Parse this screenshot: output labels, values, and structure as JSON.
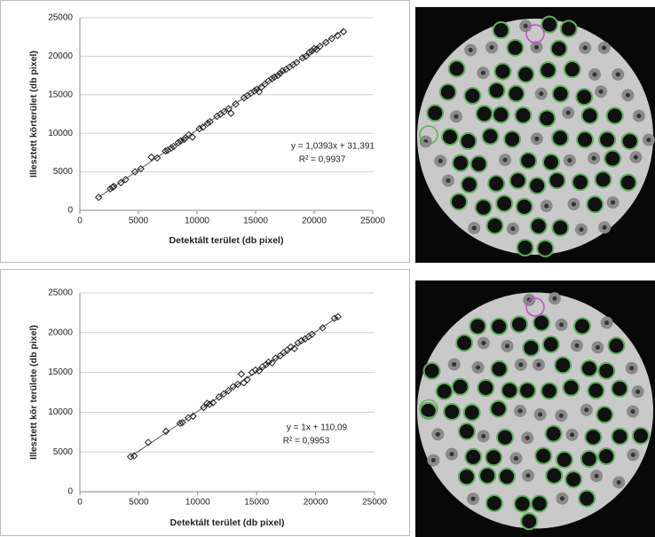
{
  "chart_data": [
    {
      "type": "scatter",
      "x_label": "Detektált terület (db pixel)",
      "y_label": "Illesztett körterület  (db pixel)",
      "annotations": [
        "y = 1,0393x + 31,391",
        "R² = 0,9937"
      ],
      "x": [
        1600,
        2600,
        2800,
        2900,
        3500,
        3900,
        4700,
        5200,
        6100,
        6600,
        7300,
        7500,
        7800,
        8000,
        8400,
        8600,
        8900,
        9000,
        9300,
        9600,
        10200,
        10500,
        10900,
        11100,
        11700,
        12000,
        12300,
        12700,
        12900,
        13300,
        14000,
        14300,
        14600,
        14900,
        15100,
        15300,
        15500,
        15800,
        16100,
        16400,
        16600,
        16900,
        17100,
        17300,
        17600,
        17900,
        18200,
        18500,
        19000,
        19300,
        19600,
        19800,
        20000,
        20200,
        20500,
        21000,
        21500,
        22000,
        22500
      ],
      "values": [
        1700,
        2800,
        3000,
        3100,
        3600,
        4000,
        5000,
        5400,
        6900,
        6800,
        7700,
        7800,
        8100,
        8300,
        8800,
        9000,
        9200,
        9400,
        9800,
        9500,
        10600,
        10800,
        11300,
        11500,
        12200,
        12500,
        12800,
        13200,
        12600,
        13800,
        14600,
        14900,
        15200,
        15500,
        15700,
        15400,
        16000,
        16400,
        16800,
        17100,
        17300,
        17500,
        17800,
        18100,
        18300,
        18600,
        18900,
        19200,
        19800,
        20000,
        20500,
        20700,
        21000,
        20900,
        21300,
        21800,
        22300,
        22700,
        23200
      ],
      "trendline": {
        "x": [
          1600,
          22500
        ],
        "y": [
          1694,
          23416
        ]
      },
      "color": "#222222",
      "xlim": [
        0,
        25000
      ],
      "xticks": [
        0,
        5000,
        10000,
        15000,
        20000,
        25000
      ],
      "ylim": [
        0,
        25000
      ],
      "yticks": [
        0,
        5000,
        10000,
        15000,
        20000,
        25000
      ],
      "grid": true
    },
    {
      "type": "scatter",
      "x_label": "Detektált terület  (db pixel)",
      "y_label": "Illesztett kör területe  (db pixel)",
      "annotations": [
        "y = 1x + 110,09",
        "R² = 0,9953"
      ],
      "x": [
        4300,
        4600,
        5800,
        7300,
        8500,
        8700,
        9200,
        9600,
        10500,
        10800,
        11000,
        11300,
        11800,
        12200,
        12600,
        13000,
        13400,
        13700,
        13900,
        14200,
        14600,
        14900,
        15200,
        15500,
        15800,
        16000,
        16300,
        16600,
        17000,
        17300,
        17600,
        17900,
        18200,
        18500,
        18800,
        19100,
        19400,
        19700,
        20600,
        21600,
        21900
      ],
      "values": [
        4400,
        4500,
        6200,
        7600,
        8600,
        8700,
        9300,
        9500,
        10600,
        11100,
        11000,
        11200,
        11900,
        12300,
        12700,
        13200,
        13500,
        14800,
        13700,
        14100,
        15000,
        15300,
        15200,
        15700,
        16000,
        16300,
        16200,
        16800,
        17100,
        17500,
        17800,
        18200,
        18000,
        18700,
        19000,
        19200,
        19500,
        19800,
        20600,
        21800,
        22000
      ],
      "trendline": {
        "x": [
          4300,
          21900
        ],
        "y": [
          4410,
          22010
        ]
      },
      "color": "#222222",
      "xlim": [
        0,
        25000
      ],
      "xticks": [
        0,
        5000,
        10000,
        15000,
        20000,
        25000
      ],
      "ylim": [
        0,
        25000
      ],
      "yticks": [
        0,
        5000,
        10000,
        15000,
        20000,
        25000
      ],
      "grid": true
    }
  ]
}
